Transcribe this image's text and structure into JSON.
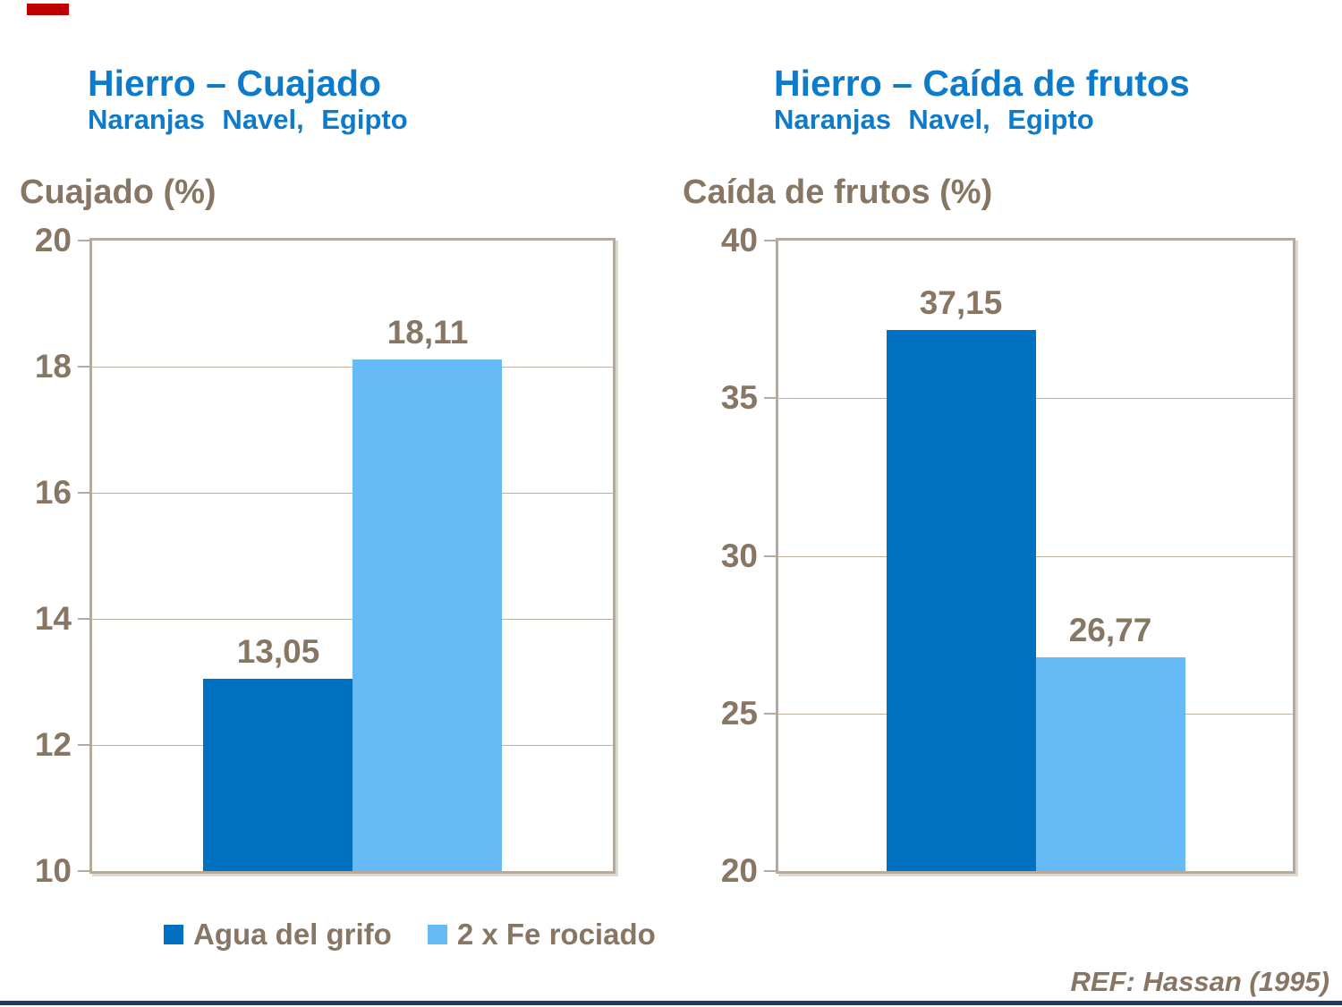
{
  "colors": {
    "series": [
      "#0070C0",
      "#66BBF7"
    ],
    "title_blue": "#0E7BCA",
    "text_brown": "#877663",
    "frame": "#B5AA9C",
    "gridline": "#BCB0A1",
    "bottom_bar": "#1F3864",
    "red_mark": "#C00000"
  },
  "legend": {
    "items": [
      {
        "label": "Agua del grifo",
        "color": "#0070C0"
      },
      {
        "label": "2 x Fe rociado",
        "color": "#66BBF7"
      }
    ]
  },
  "footer": {
    "ref": "REF: Hassan (1995)"
  },
  "chart_data": [
    {
      "type": "bar",
      "title": "Hierro – Cuajado",
      "subtitle": "Naranjas Navel, Egipto",
      "ylabel": "Cuajado (%)",
      "xlabel": "",
      "categories": [
        "Agua del grifo",
        "2 x Fe rociado"
      ],
      "values": [
        13.05,
        18.11
      ],
      "value_labels": [
        "13,05",
        "18,11"
      ],
      "ylim": [
        10,
        20
      ],
      "yticks": [
        10,
        12,
        14,
        16,
        18,
        20
      ],
      "grid": true,
      "legend_position": "bottom"
    },
    {
      "type": "bar",
      "title": "Hierro – Caída de frutos",
      "subtitle": "Naranjas Navel, Egipto",
      "ylabel": "Caída de frutos (%)",
      "xlabel": "",
      "categories": [
        "Agua del grifo",
        "2 x Fe rociado"
      ],
      "values": [
        37.15,
        26.77
      ],
      "value_labels": [
        "37,15",
        "26,77"
      ],
      "ylim": [
        20,
        40
      ],
      "yticks": [
        20,
        25,
        30,
        35,
        40
      ],
      "grid": true,
      "legend_position": "none"
    }
  ]
}
